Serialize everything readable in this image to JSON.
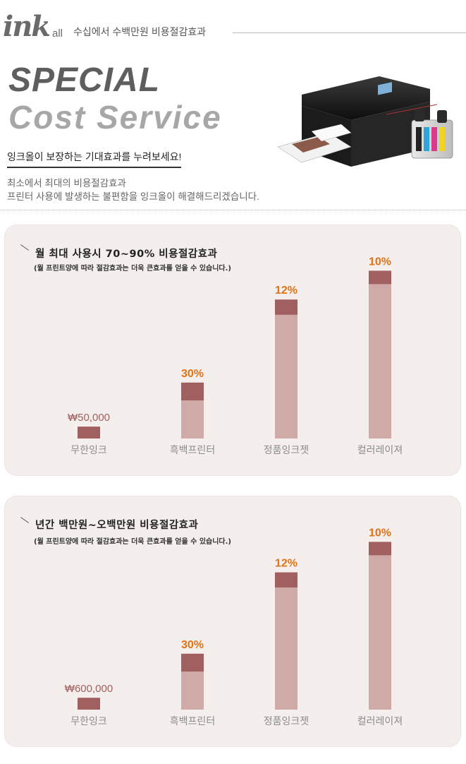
{
  "header": {
    "logo_ink": "ink",
    "logo_all": "all",
    "title": "수십에서 수백만원 비용절감효과"
  },
  "hero": {
    "special": "SPECIAL",
    "cost_service": "Cost Service",
    "tagline": "잉크올이 보장하는 기대효과를 누려보세요!",
    "desc_line1": "최소에서 최대의 비용절감효과",
    "desc_line2": "프린터 사용에 발생하는 불편함을 잉크올이 해결해드리겠습니다."
  },
  "colors": {
    "bar_light": "#cfaaa7",
    "bar_dark": "#a25f5f",
    "percent_label": "#e07417",
    "panel_bg": "#f4eeed"
  },
  "chart_data": [
    {
      "type": "bar",
      "title": "월 최대 사용시 70~90% 비용절감효과",
      "subtitle": "(월 프린트양에 따라 절감효과는 더욱 큰효과를 얻을 수 있습니다.)",
      "categories": [
        "무한잉크",
        "흑백프린터",
        "정품잉크젯",
        "컬러레이져"
      ],
      "value_labels": [
        "₩50,000",
        "30%",
        "12%",
        "10%"
      ],
      "relative_heights": [
        0.07,
        0.33,
        0.82,
        0.99
      ],
      "dark_cap_fraction": [
        1.0,
        0.32,
        0.11,
        0.08
      ]
    },
    {
      "type": "bar",
      "title": "년간 백만원~오백만원 비용절감효과",
      "subtitle": "(월 프린트양에 따라 절감효과는 더욱 큰효과를 얻을 수 있습니다.)",
      "categories": [
        "무한잉크",
        "흑백프린터",
        "정품잉크젯",
        "컬러레이져"
      ],
      "value_labels": [
        "₩600,000",
        "30%",
        "12%",
        "10%"
      ],
      "relative_heights": [
        0.07,
        0.33,
        0.81,
        0.99
      ],
      "dark_cap_fraction": [
        1.0,
        0.32,
        0.11,
        0.08
      ]
    }
  ]
}
